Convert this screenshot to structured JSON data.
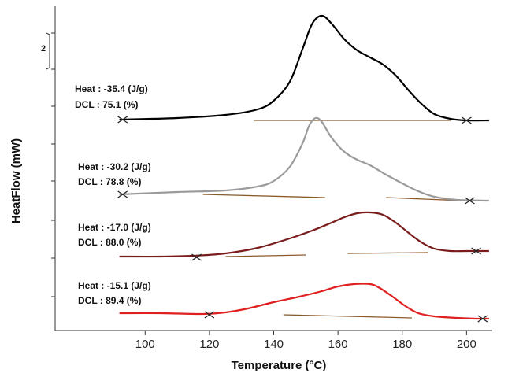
{
  "chart_data": {
    "type": "line",
    "title": "",
    "xlabel": "Temperature (°C)",
    "ylabel": "HeatFlow (mW)",
    "xlim": [
      72,
      208
    ],
    "xticks": [
      100,
      120,
      140,
      160,
      180,
      200
    ],
    "scale_bar_label": "2",
    "grid": false,
    "legend": "none",
    "series": [
      {
        "color": "#000000",
        "heat_label": "Heat : -35.4 (J/g)",
        "dcl_label": "DCL : 75.1 (%)",
        "points": [
          [
            92,
            152
          ],
          [
            110,
            150
          ],
          [
            125,
            146
          ],
          [
            135,
            139
          ],
          [
            140,
            128
          ],
          [
            145,
            104
          ],
          [
            149,
            62
          ],
          [
            152,
            30
          ],
          [
            155,
            20
          ],
          [
            158,
            30
          ],
          [
            162,
            50
          ],
          [
            166,
            64
          ],
          [
            170,
            73
          ],
          [
            174,
            82
          ],
          [
            178,
            96
          ],
          [
            182,
            115
          ],
          [
            186,
            132
          ],
          [
            190,
            145
          ],
          [
            195,
            151
          ],
          [
            200,
            153
          ],
          [
            207,
            153
          ]
        ],
        "baseline_segments": [
          [
            [
              134,
              153
            ],
            [
              195,
              153
            ]
          ]
        ],
        "markers": [
          [
            93,
            152
          ],
          [
            200,
            153
          ]
        ]
      },
      {
        "color": "#9a9a9a",
        "heat_label": "Heat : -30.2 (J/g)",
        "dcl_label": "DCL : 78.8 (%)",
        "points": [
          [
            92,
            247
          ],
          [
            110,
            244
          ],
          [
            125,
            242
          ],
          [
            135,
            237
          ],
          [
            140,
            230
          ],
          [
            145,
            212
          ],
          [
            149,
            182
          ],
          [
            151,
            160
          ],
          [
            153,
            150
          ],
          [
            155,
            155
          ],
          [
            158,
            175
          ],
          [
            162,
            193
          ],
          [
            166,
            203
          ],
          [
            170,
            210
          ],
          [
            175,
            222
          ],
          [
            180,
            233
          ],
          [
            185,
            243
          ],
          [
            190,
            250
          ],
          [
            197,
            254
          ],
          [
            207,
            255
          ]
        ],
        "baseline_segments": [
          [
            [
              118,
              247
            ],
            [
              156,
              251
            ]
          ],
          [
            [
              175,
              251
            ],
            [
              199,
              255
            ]
          ]
        ],
        "markers": [
          [
            93,
            247
          ],
          [
            201,
            255
          ]
        ]
      },
      {
        "color": "#7a1c1c",
        "heat_label": "Heat : -17.0 (J/g)",
        "dcl_label": "DCL : 88.0 (%)",
        "points": [
          [
            92,
            326
          ],
          [
            105,
            326
          ],
          [
            115,
            325
          ],
          [
            125,
            322
          ],
          [
            135,
            315
          ],
          [
            145,
            303
          ],
          [
            152,
            293
          ],
          [
            158,
            283
          ],
          [
            162,
            276
          ],
          [
            166,
            271
          ],
          [
            170,
            270
          ],
          [
            174,
            273
          ],
          [
            178,
            283
          ],
          [
            182,
            296
          ],
          [
            186,
            308
          ],
          [
            190,
            316
          ],
          [
            195,
            319
          ],
          [
            200,
            319
          ],
          [
            207,
            319
          ]
        ],
        "baseline_segments": [
          [
            [
              125,
              326
            ],
            [
              150,
              324
            ]
          ],
          [
            [
              163,
              322
            ],
            [
              188,
              321
            ]
          ]
        ],
        "markers": [
          [
            116,
            327
          ],
          [
            203,
            319
          ]
        ]
      },
      {
        "color": "#e02020",
        "heat_label": "Heat : -15.1 (J/g)",
        "dcl_label": "DCL : 89.4 (%)",
        "points": [
          [
            92,
            398
          ],
          [
            105,
            398
          ],
          [
            118,
            399
          ],
          [
            125,
            397
          ],
          [
            132,
            392
          ],
          [
            140,
            384
          ],
          [
            148,
            377
          ],
          [
            155,
            370
          ],
          [
            160,
            364
          ],
          [
            165,
            361
          ],
          [
            170,
            361
          ],
          [
            173,
            366
          ],
          [
            177,
            377
          ],
          [
            181,
            389
          ],
          [
            185,
            398
          ],
          [
            190,
            402
          ],
          [
            197,
            404
          ],
          [
            203,
            405
          ],
          [
            207,
            405
          ]
        ],
        "baseline_segments": [
          [
            [
              143,
              400
            ],
            [
              183,
              404
            ]
          ]
        ],
        "markers": [
          [
            120,
            400
          ],
          [
            205,
            405
          ]
        ]
      }
    ]
  }
}
